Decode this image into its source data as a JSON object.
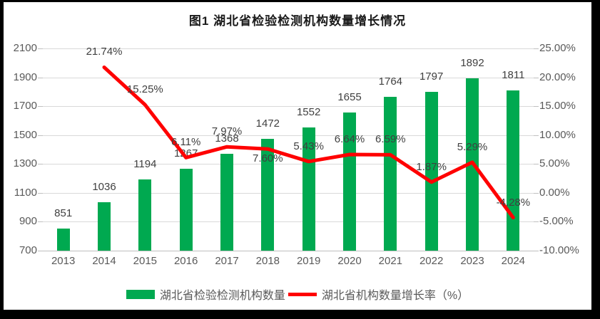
{
  "title": "图1 湖北省检验检测机构数量增长情况",
  "legend": {
    "items": [
      {
        "label": "湖北省检验检测机构数量",
        "swatch": "bar"
      },
      {
        "label": "湖北省机构数量增长率（%）",
        "swatch": "line"
      }
    ]
  },
  "colors": {
    "bar": "#00A950",
    "line": "#FF0000",
    "grid": "#D9D9D9",
    "axis_line": "#BFBFBF",
    "axis_text": "#595959",
    "data_label": "#404040",
    "title_text": "#1a1a1a",
    "frame": "#000000"
  },
  "chart_data": {
    "type": "bar",
    "subtype": "combo-bar-line",
    "title": "图1 湖北省检验检测机构数量增长情况",
    "categories": [
      "2013",
      "2014",
      "2015",
      "2016",
      "2017",
      "2018",
      "2019",
      "2020",
      "2021",
      "2022",
      "2023",
      "2024"
    ],
    "series": [
      {
        "name": "湖北省检验检测机构数量",
        "type": "bar",
        "axis": "left",
        "values": [
          851,
          1036,
          1194,
          1267,
          1368,
          1472,
          1552,
          1655,
          1764,
          1797,
          1892,
          1811
        ],
        "labels": [
          "851",
          "1036",
          "1194",
          "1267",
          "1368",
          "1472",
          "1552",
          "1655",
          "1764",
          "1797",
          "1892",
          "1811"
        ]
      },
      {
        "name": "湖北省机构数量增长率（%）",
        "type": "line",
        "axis": "right",
        "values": [
          null,
          21.74,
          15.25,
          6.11,
          7.97,
          7.6,
          5.43,
          6.64,
          6.59,
          1.87,
          5.29,
          -4.28
        ],
        "labels": [
          null,
          "21.74%",
          "15.25%",
          "6.11%",
          "7.97%",
          "7.60%",
          "5.43%",
          "6.64%",
          "6.59%",
          "1.87%",
          "5.29%",
          "-4.28%"
        ],
        "label_positions": [
          null,
          "above",
          "above",
          "above",
          "above",
          "below",
          "above",
          "above",
          "above",
          "above",
          "above",
          "above"
        ]
      }
    ],
    "left_axis": {
      "min": 700,
      "max": 2100,
      "step": 200,
      "tick_labels": [
        "700",
        "900",
        "1100",
        "1300",
        "1500",
        "1700",
        "1900",
        "2100"
      ]
    },
    "right_axis": {
      "min": -10,
      "max": 25,
      "step": 5,
      "tick_labels": [
        "-10.00%",
        "-5.00%",
        "0.00%",
        "5.00%",
        "10.00%",
        "15.00%",
        "20.00%",
        "25.00%"
      ]
    },
    "grid": true,
    "legend_position": "bottom"
  }
}
